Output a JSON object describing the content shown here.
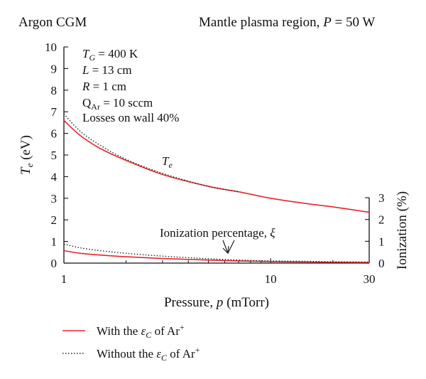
{
  "header": {
    "left": "Argon CGM",
    "right_prefix": "Mantle plasma region, ",
    "right_var": "P",
    "right_suffix": " = 50 W"
  },
  "params": {
    "tg_var": "T",
    "tg_sub": "G",
    "tg_rest": " = 400 K",
    "l_var": "L",
    "l_rest": " = 13 cm",
    "r_var": "R",
    "r_rest": " = 1 cm",
    "q_var": "Q",
    "q_sub": "Ar",
    "q_rest": "  = 10 sccm",
    "losses": "Losses on wall 40%"
  },
  "annotations": {
    "te_var": "T",
    "te_sub": "e",
    "ion_text": "Ionization percentage, ",
    "ion_var": "ξ"
  },
  "legend": {
    "solid_prefix": "With the ",
    "solid_var": "ε",
    "solid_sub": "C",
    "solid_mid": " of Ar",
    "solid_sup": "+",
    "dotted_prefix": "Without the ",
    "dotted_var": "ε",
    "dotted_sub": "C",
    "dotted_mid": " of Ar",
    "dotted_sup": "+"
  },
  "colors": {
    "solid": "#e8252a",
    "dotted": "#222222",
    "axis": "#111111"
  },
  "chart_data": {
    "type": "line",
    "x_scale": "log",
    "xlim": [
      1,
      30
    ],
    "ylim_left": [
      0,
      10
    ],
    "ylim_right": [
      0,
      3
    ],
    "x_ticks": [
      1,
      10,
      30
    ],
    "y_left_ticks": [
      0,
      1,
      2,
      3,
      4,
      5,
      6,
      7,
      8,
      9,
      10
    ],
    "y_right_ticks": [
      0,
      1,
      2,
      3
    ],
    "xlabel_prefix": "Pressure, ",
    "xlabel_var": "p",
    "xlabel_suffix": " (mTorr)",
    "ylabel_left_var": "T",
    "ylabel_left_sub": "e",
    "ylabel_left_unit": " (eV)",
    "ylabel_right": "Ionization (%)",
    "series": [
      {
        "style": "solid",
        "axis": "left",
        "x": [
          1,
          1.2,
          1.5,
          2,
          3,
          5,
          7,
          10,
          15,
          20,
          30
        ],
        "y": [
          6.6,
          5.9,
          5.3,
          4.75,
          4.1,
          3.55,
          3.3,
          3.0,
          2.75,
          2.6,
          2.35
        ]
      },
      {
        "style": "dotted",
        "axis": "left",
        "x": [
          1,
          1.2,
          1.5,
          2,
          3,
          5,
          7
        ],
        "y": [
          6.9,
          6.1,
          5.45,
          4.8,
          4.15,
          3.55,
          3.3
        ]
      },
      {
        "style": "solid",
        "axis": "right",
        "x": [
          1,
          1.2,
          1.5,
          2,
          3,
          5,
          7,
          10,
          15,
          20,
          30
        ],
        "y": [
          0.57,
          0.45,
          0.37,
          0.29,
          0.21,
          0.14,
          0.1,
          0.07,
          0.05,
          0.04,
          0.03
        ]
      },
      {
        "style": "dotted",
        "axis": "right",
        "x": [
          1,
          1.2,
          1.5,
          2,
          3,
          5,
          7,
          10,
          15,
          20,
          30
        ],
        "y": [
          0.87,
          0.7,
          0.57,
          0.45,
          0.32,
          0.2,
          0.14,
          0.1,
          0.08,
          0.06,
          0.05
        ]
      }
    ]
  }
}
